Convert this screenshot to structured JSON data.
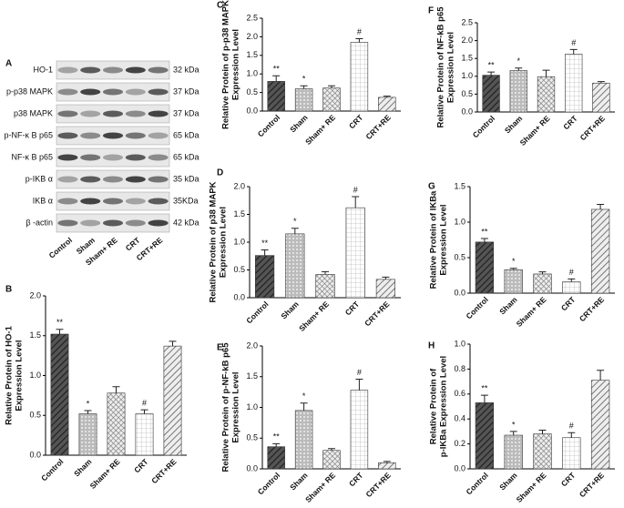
{
  "blot": {
    "label": "A",
    "rows": [
      {
        "name": "HO-1",
        "size": "32 kDa"
      },
      {
        "name": "p-p38 MAPK",
        "size": "37 kDa"
      },
      {
        "name": "p38 MAPK",
        "size": "37 kDa"
      },
      {
        "name": "p-NF-κ B p65",
        "size": "65 kDa"
      },
      {
        "name": "NF-κ B p65",
        "size": "65 kDa"
      },
      {
        "name": "p-IKB α",
        "size": "35 kDa"
      },
      {
        "name": "IKB α",
        "size": "35KDa"
      },
      {
        "name": "β -actin",
        "size": "42 kDa"
      }
    ],
    "lanes": [
      "Control",
      "Sham",
      "Sham+ RE",
      "CRT",
      "CRT+RE"
    ]
  },
  "chart_data": [
    {
      "type": "bar",
      "label": "B",
      "ylabel": [
        "Relative Protein of HO-1",
        "Expression Level"
      ],
      "categories": [
        "Control",
        "Sham",
        "Sham+ RE",
        "CRT",
        "CRT+RE"
      ],
      "values": [
        1.52,
        0.52,
        0.78,
        0.52,
        1.37
      ],
      "errors": [
        0.06,
        0.04,
        0.08,
        0.05,
        0.06
      ],
      "significance": [
        "**",
        "*",
        null,
        "#",
        null
      ],
      "ylim": [
        0,
        2
      ],
      "yticks": [
        {
          "value": 0,
          "label": "0.0"
        },
        0.5,
        {
          "value": 1,
          "label": "1.0"
        },
        1.5,
        {
          "value": 2,
          "label": "2.0"
        }
      ]
    },
    {
      "type": "bar",
      "label": "C",
      "ylabel": [
        "Relative Protein of p-p38 MAPK",
        "Expression Level"
      ],
      "categories": [
        "Control",
        "Sham",
        "Sham+ RE",
        "CRT",
        "CRT+RE"
      ],
      "values": [
        0.8,
        0.6,
        0.62,
        1.85,
        0.37
      ],
      "errors": [
        0.15,
        0.08,
        0.06,
        0.1,
        0.03
      ],
      "significance": [
        "**",
        "*",
        null,
        "#",
        null
      ],
      "ylim": [
        0,
        2.5
      ],
      "yticks": [
        {
          "value": 0,
          "label": "0.0"
        },
        0.5,
        {
          "value": 1,
          "label": "1.0"
        },
        1.5,
        {
          "value": 2,
          "label": "2.0"
        },
        2.5
      ]
    },
    {
      "type": "bar",
      "label": "D",
      "ylabel": [
        "Relative Protein of p38 MAPK",
        "Expression Level"
      ],
      "categories": [
        "Control",
        "Sham",
        "Sham+ RE",
        "CRT",
        "CRT+RE"
      ],
      "values": [
        0.76,
        1.15,
        0.42,
        1.62,
        0.33
      ],
      "errors": [
        0.1,
        0.1,
        0.05,
        0.2,
        0.04
      ],
      "significance": [
        "**",
        "*",
        null,
        "#",
        null
      ],
      "ylim": [
        0,
        2
      ],
      "yticks": [
        {
          "value": 0,
          "label": "0.0"
        },
        0.5,
        {
          "value": 1,
          "label": "1.0"
        },
        1.5,
        {
          "value": 2,
          "label": "2.0"
        }
      ]
    },
    {
      "type": "bar",
      "label": "E",
      "ylabel": [
        "Relative Protein of p-NF-kB p65",
        "Expression Level"
      ],
      "categories": [
        "Control",
        "Sham",
        "Sham+ RE",
        "CRT",
        "CRT+RE"
      ],
      "values": [
        0.36,
        0.95,
        0.3,
        1.28,
        0.1
      ],
      "errors": [
        0.05,
        0.12,
        0.03,
        0.18,
        0.02
      ],
      "significance": [
        "**",
        "*",
        null,
        "#",
        null
      ],
      "ylim": [
        0,
        2
      ],
      "yticks": [
        {
          "value": 0,
          "label": "0.0"
        },
        0.5,
        {
          "value": 1,
          "label": "1.0"
        },
        1.5,
        {
          "value": 2,
          "label": "2.0"
        }
      ]
    },
    {
      "type": "bar",
      "label": "F",
      "ylabel": [
        "Relative Protein of NF-kB p65",
        "Expression Level"
      ],
      "categories": [
        "Control",
        "Sham",
        "Sham+ RE",
        "CRT",
        "CRT+RE"
      ],
      "values": [
        1.03,
        1.16,
        0.99,
        1.62,
        0.81
      ],
      "errors": [
        0.09,
        0.07,
        0.18,
        0.13,
        0.04
      ],
      "significance": [
        "**",
        "*",
        null,
        "#",
        null
      ],
      "ylim": [
        0,
        2.5
      ],
      "yticks": [
        {
          "value": 0,
          "label": "0.0"
        },
        0.5,
        {
          "value": 1,
          "label": "1.0"
        },
        1.5,
        {
          "value": 2,
          "label": "2.0"
        },
        2.5
      ]
    },
    {
      "type": "bar",
      "label": "G",
      "ylabel": [
        "Relative Protein of IKBa",
        "Expression Level"
      ],
      "categories": [
        "Control",
        "Sham",
        "Sham+ RE",
        "CRT",
        "CRT+RE"
      ],
      "values": [
        0.72,
        0.33,
        0.27,
        0.16,
        1.18
      ],
      "errors": [
        0.05,
        0.02,
        0.03,
        0.04,
        0.07
      ],
      "significance": [
        "**",
        "*",
        null,
        "#",
        null
      ],
      "ylim": [
        0,
        1.5
      ],
      "yticks": [
        {
          "value": 0,
          "label": "0.0"
        },
        0.5,
        {
          "value": 1,
          "label": "1.0"
        },
        1.5
      ]
    },
    {
      "type": "bar",
      "label": "H",
      "ylabel": [
        "Relative Protein of",
        "p-IKBa Expression Level"
      ],
      "categories": [
        "Control",
        "Sham",
        "Sham+ RE",
        "CRT",
        "CRT+RE"
      ],
      "values": [
        0.53,
        0.27,
        0.28,
        0.25,
        0.71
      ],
      "errors": [
        0.06,
        0.03,
        0.03,
        0.04,
        0.08
      ],
      "significance": [
        "**",
        "*",
        null,
        "#",
        null
      ],
      "ylim": [
        0,
        1
      ],
      "yticks": [
        {
          "value": 0,
          "label": "0.0"
        },
        0.2,
        0.4,
        0.6,
        0.8,
        {
          "value": 1,
          "label": "1.0"
        }
      ]
    }
  ]
}
